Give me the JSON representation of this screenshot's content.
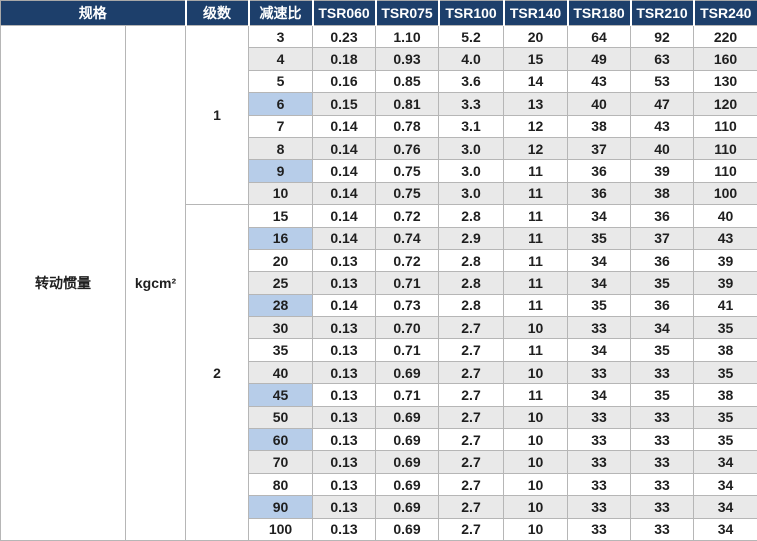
{
  "table": {
    "header": {
      "spec": "规格",
      "stages": "级数",
      "ratio": "减速比",
      "models": [
        "TSR060",
        "TSR075",
        "TSR100",
        "TSR140",
        "TSR180",
        "TSR210",
        "TSR240"
      ]
    },
    "row_label": "转动惯量",
    "unit": "kgcm²",
    "sections": [
      {
        "stage": "1",
        "rows": [
          {
            "ratio": "3",
            "highlight": false,
            "values": [
              "0.23",
              "1.10",
              "5.2",
              "20",
              "64",
              "92",
              "220"
            ]
          },
          {
            "ratio": "4",
            "highlight": false,
            "values": [
              "0.18",
              "0.93",
              "4.0",
              "15",
              "49",
              "63",
              "160"
            ]
          },
          {
            "ratio": "5",
            "highlight": false,
            "values": [
              "0.16",
              "0.85",
              "3.6",
              "14",
              "43",
              "53",
              "130"
            ]
          },
          {
            "ratio": "6",
            "highlight": true,
            "values": [
              "0.15",
              "0.81",
              "3.3",
              "13",
              "40",
              "47",
              "120"
            ]
          },
          {
            "ratio": "7",
            "highlight": false,
            "values": [
              "0.14",
              "0.78",
              "3.1",
              "12",
              "38",
              "43",
              "110"
            ]
          },
          {
            "ratio": "8",
            "highlight": false,
            "values": [
              "0.14",
              "0.76",
              "3.0",
              "12",
              "37",
              "40",
              "110"
            ]
          },
          {
            "ratio": "9",
            "highlight": true,
            "values": [
              "0.14",
              "0.75",
              "3.0",
              "11",
              "36",
              "39",
              "110"
            ]
          },
          {
            "ratio": "10",
            "highlight": false,
            "values": [
              "0.14",
              "0.75",
              "3.0",
              "11",
              "36",
              "38",
              "100"
            ]
          }
        ]
      },
      {
        "stage": "2",
        "rows": [
          {
            "ratio": "15",
            "highlight": false,
            "values": [
              "0.14",
              "0.72",
              "2.8",
              "11",
              "34",
              "36",
              "40"
            ]
          },
          {
            "ratio": "16",
            "highlight": true,
            "values": [
              "0.14",
              "0.74",
              "2.9",
              "11",
              "35",
              "37",
              "43"
            ]
          },
          {
            "ratio": "20",
            "highlight": false,
            "values": [
              "0.13",
              "0.72",
              "2.8",
              "11",
              "34",
              "36",
              "39"
            ]
          },
          {
            "ratio": "25",
            "highlight": false,
            "values": [
              "0.13",
              "0.71",
              "2.8",
              "11",
              "34",
              "35",
              "39"
            ]
          },
          {
            "ratio": "28",
            "highlight": true,
            "values": [
              "0.14",
              "0.73",
              "2.8",
              "11",
              "35",
              "36",
              "41"
            ]
          },
          {
            "ratio": "30",
            "highlight": false,
            "values": [
              "0.13",
              "0.70",
              "2.7",
              "10",
              "33",
              "34",
              "35"
            ]
          },
          {
            "ratio": "35",
            "highlight": false,
            "values": [
              "0.13",
              "0.71",
              "2.7",
              "11",
              "34",
              "35",
              "38"
            ]
          },
          {
            "ratio": "40",
            "highlight": false,
            "values": [
              "0.13",
              "0.69",
              "2.7",
              "10",
              "33",
              "33",
              "35"
            ]
          },
          {
            "ratio": "45",
            "highlight": true,
            "values": [
              "0.13",
              "0.71",
              "2.7",
              "11",
              "34",
              "35",
              "38"
            ]
          },
          {
            "ratio": "50",
            "highlight": false,
            "values": [
              "0.13",
              "0.69",
              "2.7",
              "10",
              "33",
              "33",
              "35"
            ]
          },
          {
            "ratio": "60",
            "highlight": true,
            "values": [
              "0.13",
              "0.69",
              "2.7",
              "10",
              "33",
              "33",
              "35"
            ]
          },
          {
            "ratio": "70",
            "highlight": false,
            "values": [
              "0.13",
              "0.69",
              "2.7",
              "10",
              "33",
              "33",
              "34"
            ]
          },
          {
            "ratio": "80",
            "highlight": false,
            "values": [
              "0.13",
              "0.69",
              "2.7",
              "10",
              "33",
              "33",
              "34"
            ]
          },
          {
            "ratio": "90",
            "highlight": true,
            "values": [
              "0.13",
              "0.69",
              "2.7",
              "10",
              "33",
              "33",
              "34"
            ]
          },
          {
            "ratio": "100",
            "highlight": false,
            "values": [
              "0.13",
              "0.69",
              "2.7",
              "10",
              "33",
              "33",
              "34"
            ]
          }
        ]
      }
    ]
  },
  "colors": {
    "header_bg": "#1d3f6b",
    "header_text": "#ffffff",
    "row_alt_bg": "#e9e9e9",
    "highlight_bg": "#b7cde9",
    "border": "#b6b6b6",
    "text": "#1f1f1f"
  }
}
